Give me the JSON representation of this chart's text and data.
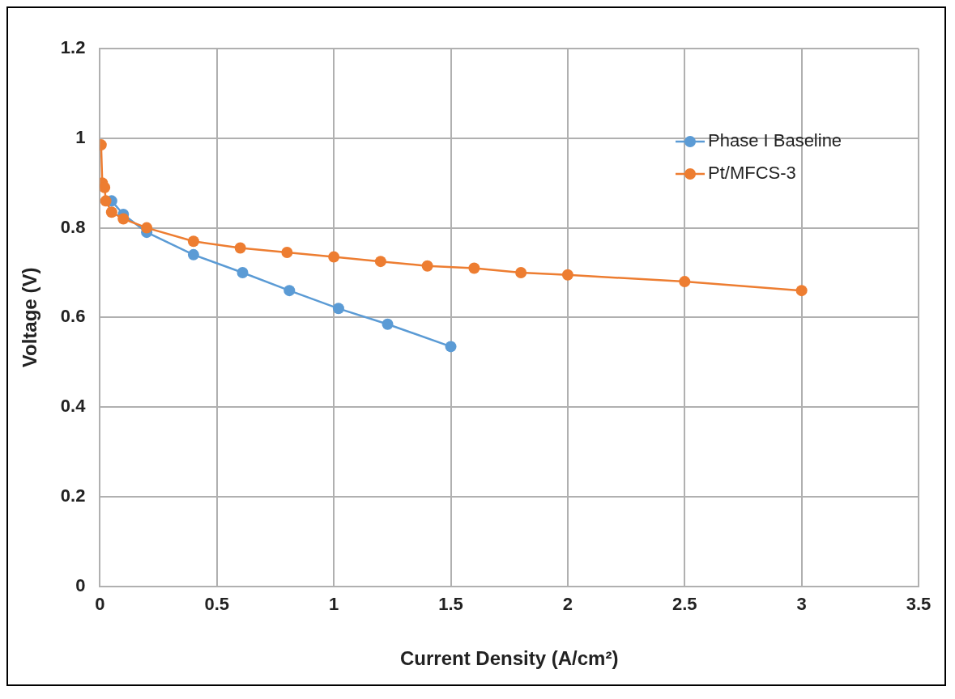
{
  "chart_data": {
    "type": "line",
    "xlabel": "Current Density (A/cm²)",
    "ylabel": "Voltage (V)",
    "xlim": [
      0,
      3.5
    ],
    "xticks": [
      0,
      0.5,
      1,
      1.5,
      2,
      2.5,
      3,
      3.5
    ],
    "ylim": [
      0,
      1.2
    ],
    "yticks": [
      0,
      0.2,
      0.4,
      0.6,
      0.8,
      1,
      1.2
    ],
    "grid": true,
    "legend": "top right",
    "marker": "circle",
    "series": [
      {
        "name": "Phase I Baseline",
        "color": "#5b9bd5",
        "x": [
          0.05,
          0.1,
          0.2,
          0.4,
          0.61,
          0.81,
          1.02,
          1.23,
          1.5
        ],
        "values": [
          0.86,
          0.83,
          0.79,
          0.74,
          0.7,
          0.66,
          0.62,
          0.585,
          0.535
        ]
      },
      {
        "name": "Pt/MFCS-3",
        "color": "#ed7d31",
        "x": [
          0.005,
          0.01,
          0.02,
          0.025,
          0.05,
          0.1,
          0.2,
          0.4,
          0.6,
          0.8,
          1.0,
          1.2,
          1.4,
          1.6,
          1.8,
          2.0,
          2.5,
          3.0
        ],
        "values": [
          0.985,
          0.9,
          0.89,
          0.86,
          0.835,
          0.82,
          0.8,
          0.77,
          0.755,
          0.745,
          0.735,
          0.725,
          0.715,
          0.71,
          0.7,
          0.695,
          0.68,
          0.66
        ]
      }
    ]
  }
}
